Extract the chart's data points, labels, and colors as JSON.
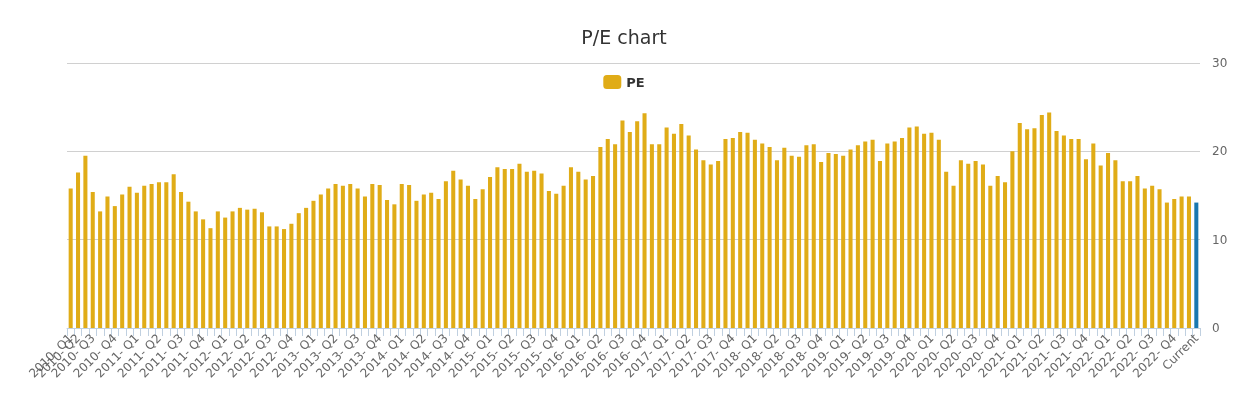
{
  "chart_data": {
    "type": "bar",
    "title": "P/E chart",
    "categories": [
      "2010- Q1",
      "2010- Q2",
      null,
      "2010- Q3",
      null,
      null,
      "2010- Q4",
      null,
      null,
      "2011- Q1",
      null,
      null,
      "2011- Q2",
      null,
      null,
      "2011- Q3",
      null,
      null,
      "2011- Q4",
      null,
      null,
      "2012- Q1",
      null,
      null,
      "2012- Q2",
      null,
      null,
      "2012- Q3",
      null,
      null,
      "2012- Q4",
      null,
      null,
      "2013- Q1",
      null,
      null,
      "2013- Q2",
      null,
      null,
      "2013- Q3",
      null,
      null,
      "2013- Q4",
      null,
      null,
      "2014- Q1",
      null,
      null,
      "2014- Q2",
      null,
      null,
      "2014- Q3",
      null,
      null,
      "2014- Q4",
      null,
      null,
      "2015- Q1",
      null,
      null,
      "2015- Q2",
      null,
      null,
      "2015- Q3",
      null,
      null,
      "2015- Q4",
      null,
      null,
      "2016- Q1",
      null,
      null,
      "2016- Q2",
      null,
      null,
      "2016- Q3",
      null,
      null,
      "2016- Q4",
      null,
      null,
      "2017- Q1",
      null,
      null,
      "2017- Q2",
      null,
      null,
      "2017- Q3",
      null,
      null,
      "2017- Q4",
      null,
      null,
      "2018- Q1",
      null,
      null,
      "2018- Q2",
      null,
      null,
      "2018- Q3",
      null,
      null,
      "2018- Q4",
      null,
      null,
      "2019- Q1",
      null,
      null,
      "2019- Q2",
      null,
      null,
      "2019- Q3",
      null,
      null,
      "2019- Q4",
      null,
      null,
      "2020- Q1",
      null,
      null,
      "2020- Q2",
      null,
      null,
      "2020- Q3",
      null,
      null,
      "2020- Q4",
      null,
      null,
      "2021- Q1",
      null,
      null,
      "2021- Q2",
      null,
      null,
      "2021- Q3",
      null,
      null,
      "2021- Q4",
      null,
      null,
      "2022- Q1",
      null,
      null,
      "2022- Q2",
      null,
      null,
      "2022- Q3",
      null,
      null,
      "2022- Q4",
      null,
      null,
      "Current"
    ],
    "series": [
      {
        "name": "PE",
        "color": "#e0ac17",
        "values": [
          15.8,
          17.6,
          19.5,
          15.4,
          13.2,
          14.9,
          13.8,
          15.1,
          16.0,
          15.3,
          16.1,
          16.3,
          16.5,
          16.5,
          17.4,
          15.4,
          14.3,
          13.2,
          12.3,
          11.3,
          13.2,
          12.5,
          13.2,
          13.6,
          13.4,
          13.5,
          13.1,
          11.5,
          11.5,
          11.2,
          11.8,
          13.0,
          13.6,
          14.4,
          15.1,
          15.8,
          16.3,
          16.1,
          16.3,
          15.8,
          14.9,
          16.3,
          16.2,
          14.5,
          14.0,
          16.3,
          16.2,
          14.4,
          15.1,
          15.3,
          14.6,
          16.6,
          17.8,
          16.8,
          16.1,
          14.6,
          15.7,
          17.1,
          18.2,
          18.0,
          18.0,
          18.6,
          17.7,
          17.8,
          17.5,
          15.5,
          15.2,
          16.1,
          18.2,
          17.7,
          16.8,
          17.2,
          20.5,
          21.4,
          20.8,
          23.5,
          22.2,
          23.4,
          24.3,
          20.8,
          20.8,
          22.7,
          22.0,
          23.1,
          21.8,
          20.2,
          19.0,
          18.5,
          18.9,
          21.4,
          21.5,
          22.2,
          22.1,
          21.3,
          20.9,
          20.5,
          19.0,
          20.4,
          19.5,
          19.4,
          20.7,
          20.8,
          18.8,
          19.8,
          19.7,
          19.5,
          20.2,
          20.7,
          21.1,
          21.3,
          18.9,
          20.9,
          21.1,
          21.5,
          22.7,
          22.8,
          22.0,
          22.1,
          21.3,
          17.7,
          16.1,
          19.0,
          18.6,
          18.9,
          18.5,
          16.1,
          17.2,
          16.5,
          20.0,
          23.2,
          22.5,
          22.6,
          24.1,
          24.4,
          22.3,
          21.8,
          21.4,
          21.4,
          19.1,
          20.9,
          18.4,
          19.8,
          19.0,
          16.6,
          16.6,
          17.2,
          15.8,
          16.1,
          15.7,
          14.2,
          14.6,
          14.9,
          14.9,
          14.2
        ],
        "colors": [
          "#e0ac17",
          "#e0ac17",
          "#e0ac17",
          "#e0ac17",
          "#e0ac17",
          "#e0ac17",
          "#e0ac17",
          "#e0ac17",
          "#e0ac17",
          "#e0ac17",
          "#e0ac17",
          "#e0ac17",
          "#e0ac17",
          "#e0ac17",
          "#e0ac17",
          "#e0ac17",
          "#e0ac17",
          "#e0ac17",
          "#e0ac17",
          "#e0ac17",
          "#e0ac17",
          "#e0ac17",
          "#e0ac17",
          "#e0ac17",
          "#e0ac17",
          "#e0ac17",
          "#e0ac17",
          "#e0ac17",
          "#e0ac17",
          "#e0ac17",
          "#e0ac17",
          "#e0ac17",
          "#e0ac17",
          "#e0ac17",
          "#e0ac17",
          "#e0ac17",
          "#e0ac17",
          "#e0ac17",
          "#e0ac17",
          "#e0ac17",
          "#e0ac17",
          "#e0ac17",
          "#e0ac17",
          "#e0ac17",
          "#e0ac17",
          "#e0ac17",
          "#e0ac17",
          "#e0ac17",
          "#e0ac17",
          "#e0ac17",
          "#e0ac17",
          "#e0ac17",
          "#e0ac17",
          "#e0ac17",
          "#e0ac17",
          "#e0ac17",
          "#e0ac17",
          "#e0ac17",
          "#e0ac17",
          "#e0ac17",
          "#e0ac17",
          "#e0ac17",
          "#e0ac17",
          "#e0ac17",
          "#e0ac17",
          "#e0ac17",
          "#e0ac17",
          "#e0ac17",
          "#e0ac17",
          "#e0ac17",
          "#e0ac17",
          "#e0ac17",
          "#e0ac17",
          "#e0ac17",
          "#e0ac17",
          "#e0ac17",
          "#e0ac17",
          "#e0ac17",
          "#e0ac17",
          "#e0ac17",
          "#e0ac17",
          "#e0ac17",
          "#e0ac17",
          "#e0ac17",
          "#e0ac17",
          "#e0ac17",
          "#e0ac17",
          "#e0ac17",
          "#e0ac17",
          "#e0ac17",
          "#e0ac17",
          "#e0ac17",
          "#e0ac17",
          "#e0ac17",
          "#e0ac17",
          "#e0ac17",
          "#e0ac17",
          "#e0ac17",
          "#e0ac17",
          "#e0ac17",
          "#e0ac17",
          "#e0ac17",
          "#e0ac17",
          "#e0ac17",
          "#e0ac17",
          "#e0ac17",
          "#e0ac17",
          "#e0ac17",
          "#e0ac17",
          "#e0ac17",
          "#e0ac17",
          "#e0ac17",
          "#e0ac17",
          "#e0ac17",
          "#e0ac17",
          "#e0ac17",
          "#e0ac17",
          "#e0ac17",
          "#e0ac17",
          "#e0ac17",
          "#e0ac17",
          "#e0ac17",
          "#e0ac17",
          "#e0ac17",
          "#e0ac17",
          "#e0ac17",
          "#e0ac17",
          "#e0ac17",
          "#e0ac17",
          "#e0ac17",
          "#e0ac17",
          "#e0ac17",
          "#e0ac17",
          "#e0ac17",
          "#e0ac17",
          "#e0ac17",
          "#e0ac17",
          "#e0ac17",
          "#e0ac17",
          "#e0ac17",
          "#e0ac17",
          "#e0ac17",
          "#e0ac17",
          "#e0ac17",
          "#e0ac17",
          "#e0ac17",
          "#e0ac17",
          "#e0ac17",
          "#e0ac17",
          "#e0ac17",
          "#e0ac17",
          "#e0ac17",
          "#e0ac17",
          "#1a78b0"
        ]
      }
    ],
    "ylim": [
      0,
      30
    ],
    "yticks": [
      0,
      10,
      20,
      30
    ],
    "grid": "y",
    "legend": "top"
  }
}
